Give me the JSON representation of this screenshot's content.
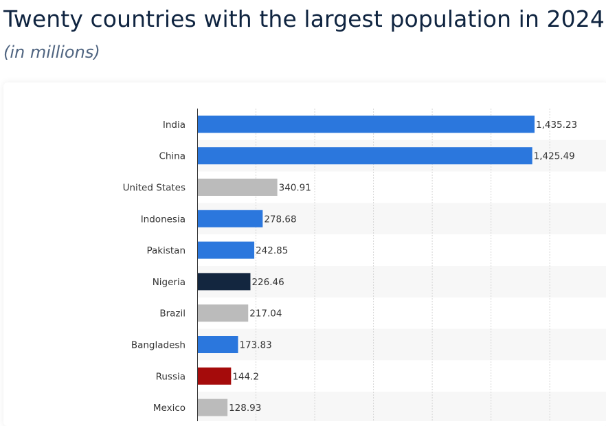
{
  "title": "Twenty countries with the largest population in 2024",
  "subtitle": "(in millions)",
  "colors": {
    "blue": "#2b77dd",
    "gray": "#bbbbbb",
    "navy": "#13263f",
    "red": "#a50b0b",
    "row_alt": "#f7f7f7",
    "grid": "#d6d6d6"
  },
  "chart_data": {
    "type": "bar",
    "orientation": "horizontal",
    "title": "Twenty countries with the largest population in 2024",
    "subtitle": "(in millions)",
    "xlabel": "",
    "ylabel": "",
    "xlim": [
      0,
      1800
    ],
    "grid": true,
    "categories": [
      "India",
      "China",
      "United States",
      "Indonesia",
      "Pakistan",
      "Nigeria",
      "Brazil",
      "Bangladesh",
      "Russia",
      "Mexico"
    ],
    "values": [
      1435.23,
      1425.49,
      340.91,
      278.68,
      242.85,
      226.46,
      217.04,
      173.83,
      144.2,
      128.93
    ],
    "value_labels": [
      "1,435.23",
      "1,425.49",
      "340.91",
      "278.68",
      "242.85",
      "226.46",
      "217.04",
      "173.83",
      "144.2",
      "128.93"
    ],
    "bar_colors": [
      "blue",
      "blue",
      "gray",
      "blue",
      "blue",
      "navy",
      "gray",
      "blue",
      "red",
      "gray"
    ]
  }
}
